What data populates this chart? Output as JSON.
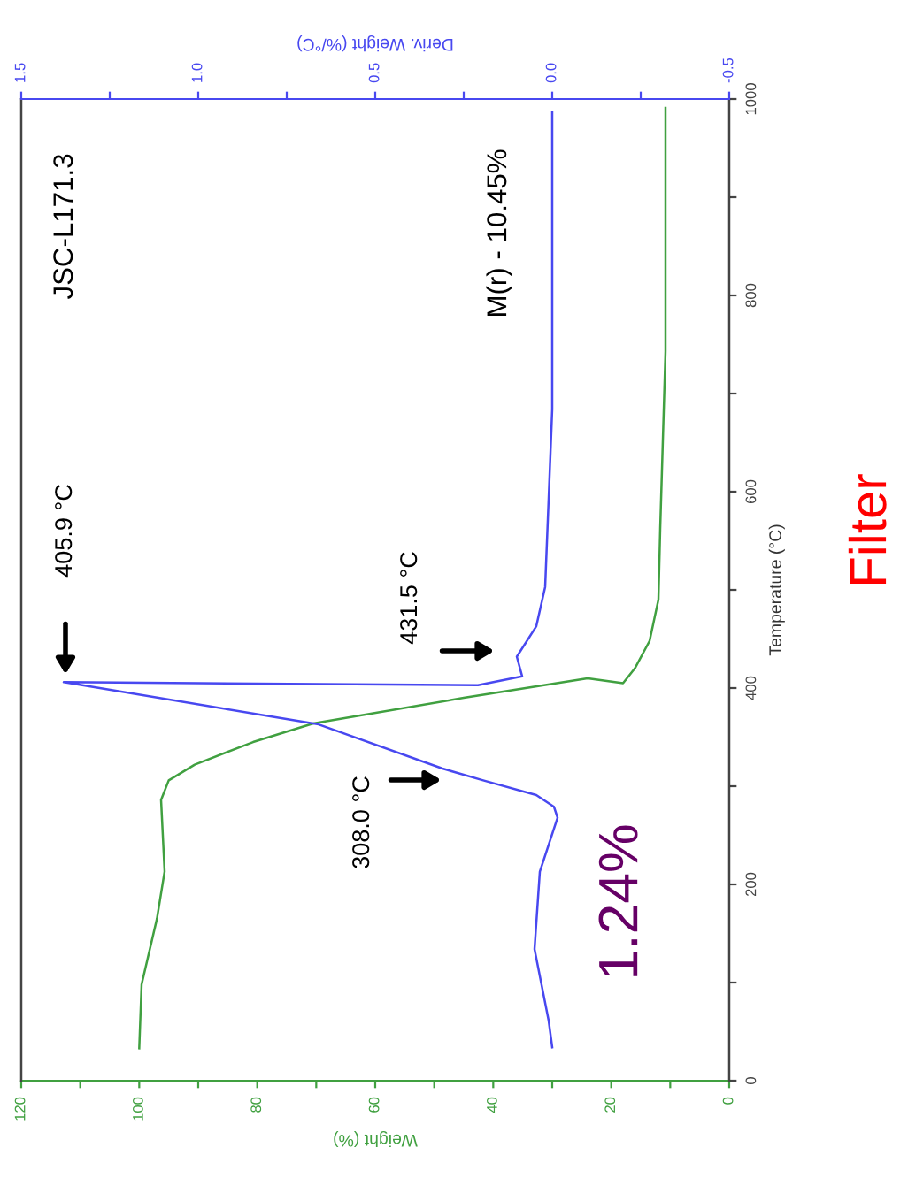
{
  "chart_data": {
    "type": "line",
    "xlabel": "Weight (%)",
    "ylabel": "Temperature (°C)",
    "x2label": "Deriv. Weight (%/°C)",
    "ylim": [
      0,
      1000
    ],
    "yticks": [
      0,
      {
        "value": 100,
        "label": null
      },
      200,
      {
        "value": 300,
        "label": null
      },
      400,
      {
        "value": 500,
        "label": null
      },
      600,
      {
        "value": 700,
        "label": null
      },
      800,
      {
        "value": 900,
        "label": null
      },
      1000
    ],
    "xlim": [
      120,
      0
    ],
    "xticks": [
      0,
      {
        "value": 10,
        "label": null
      },
      20,
      {
        "value": 30,
        "label": null
      },
      40,
      {
        "value": 50,
        "label": null
      },
      60,
      {
        "value": 70,
        "label": null
      },
      80,
      {
        "value": 90,
        "label": null
      },
      100,
      {
        "value": 110,
        "label": null
      },
      120
    ],
    "x2lim": [
      1.5,
      -0.5
    ],
    "x2ticks": [
      {
        "value": -0.5,
        "label": "-0.5"
      },
      {
        "value": -0.25,
        "label": null
      },
      {
        "value": 0,
        "label": "0.0"
      },
      {
        "value": 0.25,
        "label": null
      },
      {
        "value": 0.5,
        "label": "0.5"
      },
      {
        "value": 0.75,
        "label": null
      },
      {
        "value": 1,
        "label": "1.0"
      },
      {
        "value": 1.25,
        "label": null
      },
      {
        "value": 1.5,
        "label": "1.5"
      }
    ],
    "grid": false,
    "legend": false,
    "series": [
      {
        "color": "#40a040",
        "values": [
          33,
          98,
          165,
          213,
          286,
          306,
          322,
          345,
          364,
          390,
          410,
          405,
          420,
          448,
          490,
          562,
          743,
          991
        ],
        "x": [
          100,
          99.6,
          97,
          95.7,
          96.3,
          95,
          90.6,
          80.7,
          70.5,
          45,
          24,
          18,
          16,
          13.5,
          12,
          11.7,
          10.8,
          10.8
        ]
      },
      {
        "color": "#4848f0",
        "axis": "x2",
        "values": [
          34,
          61,
          134,
          213,
          268,
          279,
          291,
          306,
          318,
          363,
          406,
          403,
          412,
          432,
          463,
          503,
          684,
          987
        ],
        "x": [
          0.0,
          0.01,
          0.05,
          0.035,
          -0.015,
          -0.005,
          0.045,
          0.195,
          0.31,
          0.66,
          1.38,
          0.21,
          0.085,
          0.1,
          0.045,
          0.02,
          0.0,
          0.0
        ]
      }
    ],
    "annotations": [
      "JSC-L171.3",
      "M(r) - 10.45%",
      "405.9 °C",
      "431.5 °C",
      "308.0 °C",
      "1.24%",
      "Filter"
    ]
  }
}
